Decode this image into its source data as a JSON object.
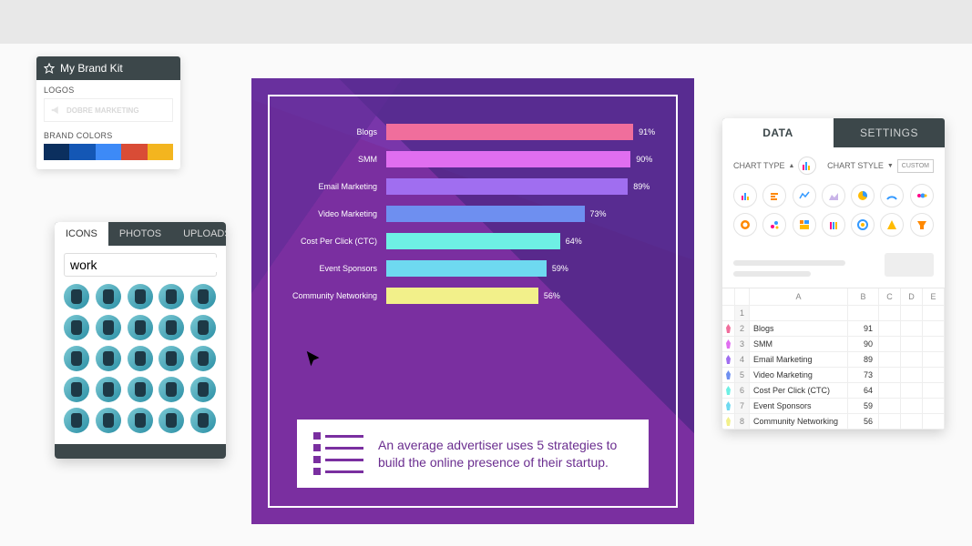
{
  "brandkit": {
    "title": "My Brand Kit",
    "logos_label": "LOGOS",
    "logo_text": "DOBRE MARKETING",
    "colors_label": "BRAND COLORS",
    "swatches": [
      "#0b2f5e",
      "#1457b5",
      "#3d8af7",
      "#d94c36",
      "#f3b51f"
    ]
  },
  "iconspanel": {
    "tabs": [
      "ICONS",
      "PHOTOS",
      "UPLOADS"
    ],
    "active_tab": 0,
    "search_value": "work",
    "cell_count": 25
  },
  "chart": {
    "type": "bar-horizontal",
    "bars": [
      {
        "label": "Blogs",
        "value": 91,
        "display": "91%",
        "color": "#f06e9c"
      },
      {
        "label": "SMM",
        "value": 90,
        "display": "90%",
        "color": "#e06ef0"
      },
      {
        "label": "Email Marketing",
        "value": 89,
        "display": "89%",
        "color": "#a06ef0"
      },
      {
        "label": "Video Marketing",
        "value": 73,
        "display": "73%",
        "color": "#6e8ff0"
      },
      {
        "label": "Cost Per Click (CTC)",
        "value": 64,
        "display": "64%",
        "color": "#6ef0e4"
      },
      {
        "label": "Event Sponsors",
        "value": 59,
        "display": "59%",
        "color": "#6ed9f0"
      },
      {
        "label": "Community Networking",
        "value": 56,
        "display": "56%",
        "color": "#f2f08a"
      }
    ],
    "max": 100,
    "caption": "An average advertiser uses 5 strategies to build the online presence of their startup."
  },
  "config": {
    "tabs": [
      "DATA",
      "SETTINGS"
    ],
    "active_tab": 0,
    "charttype_label": "CHART TYPE",
    "chartstyle_label": "CHART STYLE",
    "custom_label": "CUSTOM",
    "type_icons": 14,
    "sheet": {
      "columns": [
        "A",
        "B",
        "C",
        "D",
        "E"
      ],
      "rows": [
        {
          "n": 1,
          "swatch": null,
          "a": "",
          "b": ""
        },
        {
          "n": 2,
          "swatch": "#f06e9c",
          "a": "Blogs",
          "b": "91"
        },
        {
          "n": 3,
          "swatch": "#e06ef0",
          "a": "SMM",
          "b": "90"
        },
        {
          "n": 4,
          "swatch": "#a06ef0",
          "a": "Email Marketing",
          "b": "89"
        },
        {
          "n": 5,
          "swatch": "#6e8ff0",
          "a": "Video Marketing",
          "b": "73"
        },
        {
          "n": 6,
          "swatch": "#6ef0e4",
          "a": "Cost Per Click (CTC)",
          "b": "64"
        },
        {
          "n": 7,
          "swatch": "#6ed9f0",
          "a": "Event Sponsors",
          "b": "59"
        },
        {
          "n": 8,
          "swatch": "#f2f08a",
          "a": "Community Networking",
          "b": "56"
        }
      ]
    }
  }
}
